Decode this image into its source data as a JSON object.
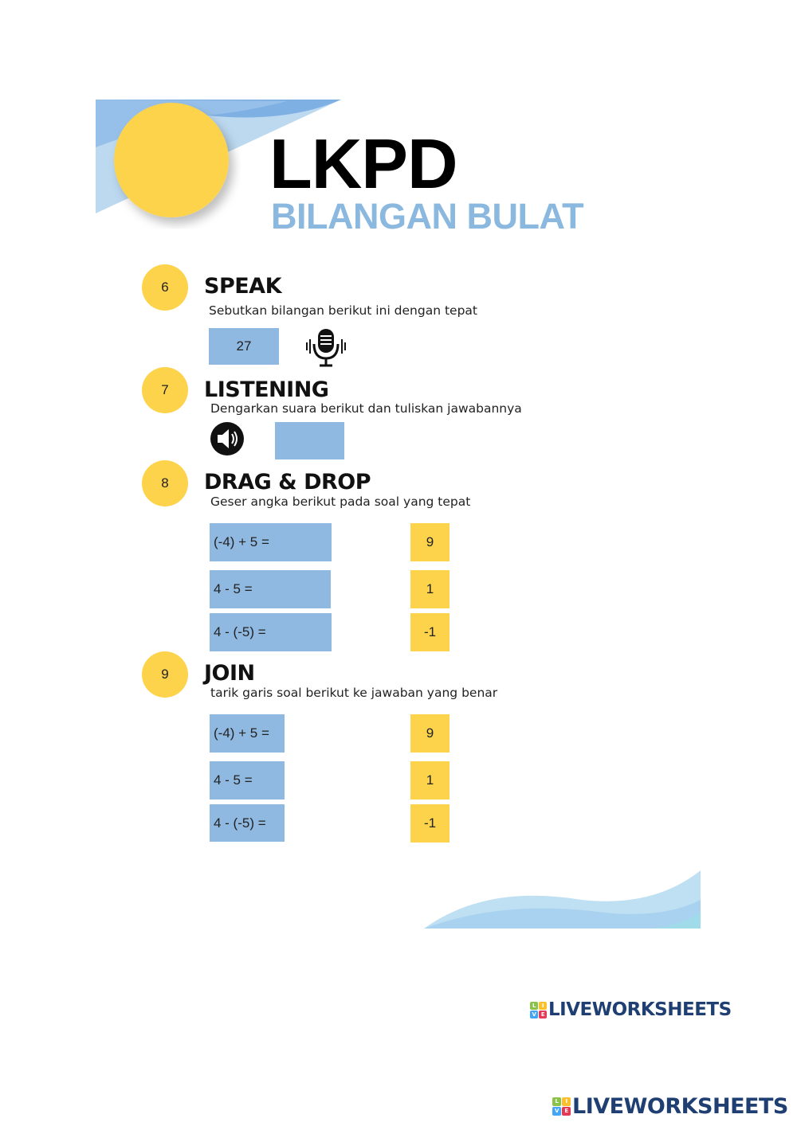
{
  "header": {
    "title": "LKPD",
    "subtitle": "BILANGAN BULAT"
  },
  "colors": {
    "yellow": "#fdd34c",
    "blue_box": "#8fb9e1",
    "title_blue": "#8ab8df",
    "brand_navy": "#1f3f73"
  },
  "sections": [
    {
      "number": "6",
      "title": "SPEAK",
      "instruction": "Sebutkan bilangan berikut ini dengan tepat",
      "value": "27",
      "icon": "microphone-icon"
    },
    {
      "number": "7",
      "title": "LISTENING",
      "instruction": "Dengarkan suara berikut dan tuliskan jawabannya",
      "answer": "",
      "icon": "speaker-icon"
    },
    {
      "number": "8",
      "title": "DRAG & DROP",
      "instruction": "Geser angka berikut pada soal yang tepat",
      "questions": [
        "(-4) + 5 =",
        "4 - 5 =",
        "4 - (-5) ="
      ],
      "answers": [
        "9",
        "1",
        "-1"
      ]
    },
    {
      "number": "9",
      "title": "JOIN",
      "instruction": "tarik garis soal berikut ke jawaban yang benar",
      "questions": [
        "(-4) + 5 =",
        "4 - 5 =",
        "4 - (-5) ="
      ],
      "answers": [
        "9",
        "1",
        "-1"
      ]
    }
  ],
  "branding": {
    "logo_text": "LIVEWORKSHEETS",
    "tiles": [
      "L",
      "I",
      "V",
      "E"
    ]
  }
}
